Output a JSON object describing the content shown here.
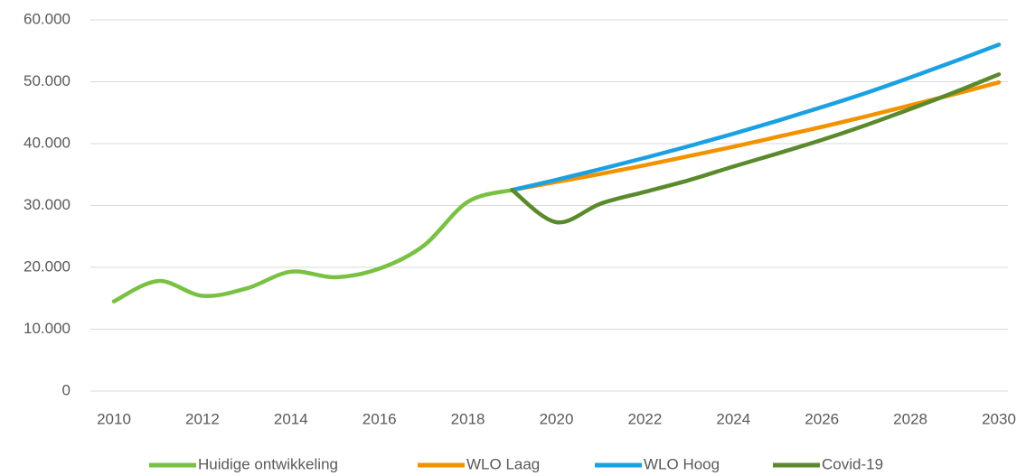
{
  "chart_data": {
    "type": "line",
    "x": [
      2010,
      2011,
      2012,
      2013,
      2014,
      2015,
      2016,
      2017,
      2018,
      2019,
      2020,
      2021,
      2022,
      2023,
      2024,
      2025,
      2026,
      2027,
      2028,
      2029,
      2030
    ],
    "series": [
      {
        "name": "Huidige ontwikkeling",
        "color": "#7ac143",
        "values": [
          14500,
          17800,
          15400,
          16600,
          19300,
          18400,
          19800,
          23500,
          30600,
          32500,
          null,
          null,
          null,
          null,
          null,
          null,
          null,
          null,
          null,
          null,
          null
        ]
      },
      {
        "name": "WLO Laag",
        "color": "#f39200",
        "values": [
          null,
          null,
          null,
          null,
          null,
          null,
          null,
          null,
          null,
          32500,
          33800,
          35100,
          36500,
          38000,
          39500,
          41100,
          42700,
          44400,
          46200,
          48000,
          49900
        ]
      },
      {
        "name": "WLO Hoog",
        "color": "#1ba1e2",
        "values": [
          null,
          null,
          null,
          null,
          null,
          null,
          null,
          null,
          null,
          32500,
          34150,
          35880,
          37700,
          39600,
          41600,
          43700,
          45900,
          48200,
          50700,
          53300,
          56000
        ]
      },
      {
        "name": "Covid-19",
        "color": "#5a8a2c",
        "values": [
          null,
          null,
          null,
          null,
          null,
          null,
          null,
          null,
          null,
          32500,
          27300,
          30300,
          32200,
          34100,
          36300,
          38400,
          40600,
          43000,
          45600,
          48300,
          51200
        ]
      }
    ],
    "xlim": [
      2010,
      2030
    ],
    "xticks": [
      2010,
      2012,
      2014,
      2016,
      2018,
      2020,
      2022,
      2024,
      2026,
      2028,
      2030
    ],
    "ylim": [
      0,
      60000
    ],
    "yticks": [
      0,
      {
        "value": 10000,
        "label": "10.000"
      },
      {
        "value": 20000,
        "label": "20.000"
      },
      {
        "value": 30000,
        "label": "30.000"
      },
      {
        "value": 40000,
        "label": "40.000"
      },
      {
        "value": 50000,
        "label": "50.000"
      },
      {
        "value": 60000,
        "label": "60.000"
      }
    ],
    "grid": true,
    "legend": "bottom"
  }
}
